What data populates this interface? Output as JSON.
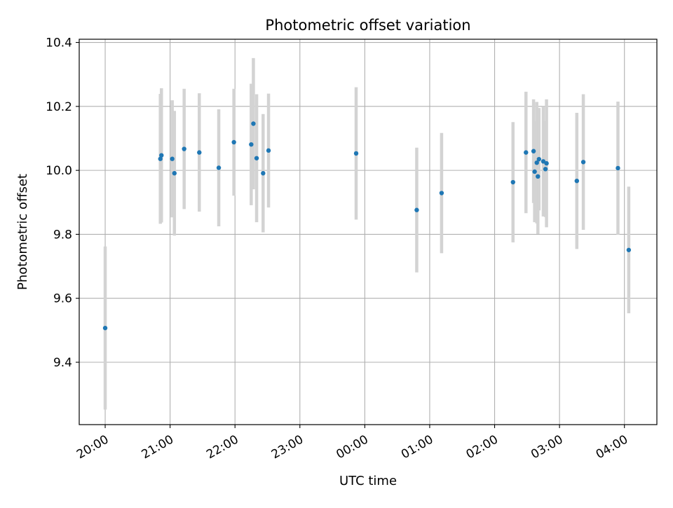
{
  "chart_data": {
    "type": "scatter",
    "title": "Photometric offset variation",
    "xlabel": "UTC time",
    "ylabel": "Photometric offset",
    "xlim": [
      "19:36",
      "04:30"
    ],
    "ylim": [
      9.205,
      10.41
    ],
    "x_ticks": [
      "20:00",
      "21:00",
      "22:00",
      "23:00",
      "00:00",
      "01:00",
      "02:00",
      "03:00",
      "04:00"
    ],
    "y_ticks": [
      "9.4",
      "9.6",
      "9.8",
      "10.0",
      "10.2",
      "10.4"
    ],
    "grid": true,
    "legend": "none",
    "colors": {
      "point": "#1f77b4",
      "errorbar": "#d3d3d3",
      "grid": "#b0b0b0"
    },
    "series": [
      {
        "points": [
          {
            "x": "20:00",
            "y": 9.507,
            "err": 0.255
          },
          {
            "x": "20:51",
            "y": 10.036,
            "err": 0.203
          },
          {
            "x": "20:52",
            "y": 10.047,
            "err": 0.21
          },
          {
            "x": "21:02",
            "y": 10.036,
            "err": 0.183
          },
          {
            "x": "21:04",
            "y": 9.991,
            "err": 0.195
          },
          {
            "x": "21:13",
            "y": 10.067,
            "err": 0.188
          },
          {
            "x": "21:27",
            "y": 10.056,
            "err": 0.185
          },
          {
            "x": "21:45",
            "y": 10.008,
            "err": 0.183
          },
          {
            "x": "21:59",
            "y": 10.088,
            "err": 0.167
          },
          {
            "x": "22:15",
            "y": 10.081,
            "err": 0.19
          },
          {
            "x": "22:17",
            "y": 10.146,
            "err": 0.205
          },
          {
            "x": "22:20",
            "y": 10.038,
            "err": 0.2
          },
          {
            "x": "22:26",
            "y": 9.991,
            "err": 0.185
          },
          {
            "x": "22:31",
            "y": 10.062,
            "err": 0.178
          },
          {
            "x": "23:52",
            "y": 10.053,
            "err": 0.207
          },
          {
            "x": "00:48",
            "y": 9.876,
            "err": 0.195
          },
          {
            "x": "01:11",
            "y": 9.929,
            "err": 0.188
          },
          {
            "x": "02:17",
            "y": 9.963,
            "err": 0.188
          },
          {
            "x": "02:29",
            "y": 10.056,
            "err": 0.19
          },
          {
            "x": "02:36",
            "y": 10.06,
            "err": 0.162
          },
          {
            "x": "02:37",
            "y": 9.996,
            "err": 0.158
          },
          {
            "x": "02:39",
            "y": 10.024,
            "err": 0.19
          },
          {
            "x": "02:40",
            "y": 9.981,
            "err": 0.18
          },
          {
            "x": "02:41",
            "y": 10.035,
            "err": 0.16
          },
          {
            "x": "02:45",
            "y": 10.028,
            "err": 0.172
          },
          {
            "x": "02:47",
            "y": 10.004,
            "err": 0.15
          },
          {
            "x": "02:48",
            "y": 10.022,
            "err": 0.2
          },
          {
            "x": "03:16",
            "y": 9.967,
            "err": 0.213
          },
          {
            "x": "03:22",
            "y": 10.026,
            "err": 0.212
          },
          {
            "x": "03:54",
            "y": 10.007,
            "err": 0.208
          },
          {
            "x": "04:04",
            "y": 9.751,
            "err": 0.198
          }
        ]
      }
    ]
  }
}
